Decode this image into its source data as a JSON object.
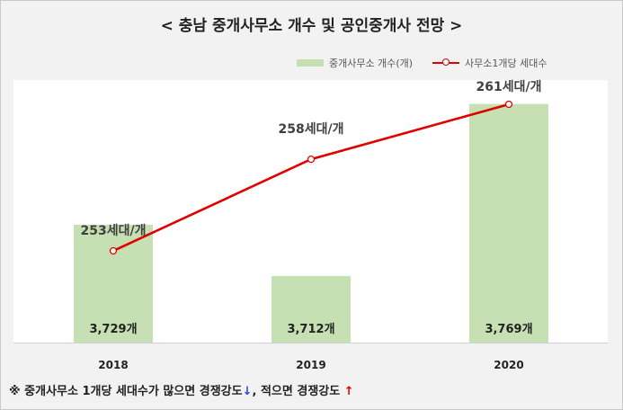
{
  "chart_data": {
    "type": "bar",
    "title": "< 충남 중개사무소 개수 및 공인중개사 전망 >",
    "categories": [
      "2018",
      "2019",
      "2020"
    ],
    "series": [
      {
        "name": "중개사무소 개수(개)",
        "type": "bar",
        "values": [
          3729,
          3712,
          3769
        ],
        "labels": [
          "3,729개",
          "3,712개",
          "3,769개"
        ],
        "color": "#c6e0b4"
      },
      {
        "name": "사무소1개당 세대수",
        "type": "line",
        "values": [
          253,
          258,
          261
        ],
        "labels": [
          "253세대/개",
          "258세대/개",
          "261세대/개"
        ],
        "color": "#e00000"
      }
    ],
    "legend": "top-right",
    "grid": false
  },
  "note": {
    "text1": "※ 중개사무소 1개당 세대수가 많으면 경쟁강도",
    "arrow_down": "↓",
    "text2": ", 적으면 경쟁강도 ",
    "arrow_up": "↑"
  }
}
